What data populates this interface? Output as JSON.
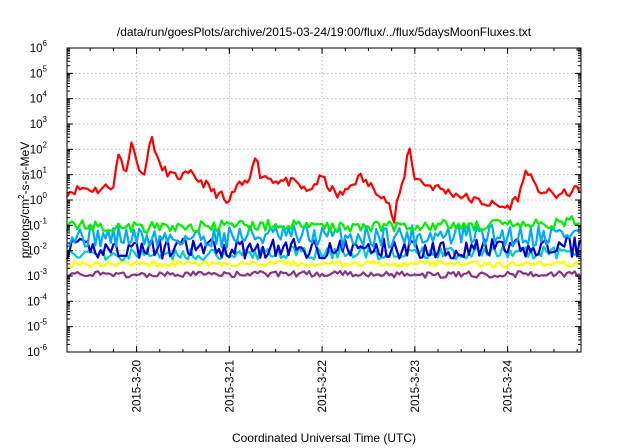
{
  "chart_data": {
    "type": "line",
    "title": "/data/run/goesPlots/archive/2015-03-24/19:00/flux/../flux/5daysMoonFluxes.txt",
    "xlabel": "Coordinated Universal Time (UTC)",
    "ylabel": "protons/cm2-s-sr-MeV",
    "ylabel_parts": [
      "protons/cm",
      "2",
      "-s-sr-MeV"
    ],
    "yscale": "log",
    "ylim": [
      1e-06,
      1000000.0
    ],
    "yticks": [
      {
        "base": "10",
        "exp": "-6"
      },
      {
        "base": "10",
        "exp": "-5"
      },
      {
        "base": "10",
        "exp": "-4"
      },
      {
        "base": "10",
        "exp": "-3"
      },
      {
        "base": "10",
        "exp": "-2"
      },
      {
        "base": "10",
        "exp": "-1"
      },
      {
        "base": "10",
        "exp": "0"
      },
      {
        "base": "10",
        "exp": "1"
      },
      {
        "base": "10",
        "exp": "2"
      },
      {
        "base": "10",
        "exp": "3"
      },
      {
        "base": "10",
        "exp": "4"
      },
      {
        "base": "10",
        "exp": "5"
      },
      {
        "base": "10",
        "exp": "6"
      }
    ],
    "xlim": [
      "2015-03-19T06:00",
      "2015-03-24T19:00"
    ],
    "xticks": [
      {
        "label": "2015-3-20",
        "t": "2015-03-20T00:00"
      },
      {
        "label": "2015-3-21",
        "t": "2015-03-21T00:00"
      },
      {
        "label": "2015-3-22",
        "t": "2015-03-22T00:00"
      },
      {
        "label": "2015-3-23",
        "t": "2015-03-23T00:00"
      },
      {
        "label": "2015-3-24",
        "t": "2015-03-24T00:00"
      }
    ],
    "grid": true,
    "series": [
      {
        "color": "#ff0000",
        "points": [
          [
            "2015-03-19T06:00",
            2
          ],
          [
            "2015-03-19T10:00",
            3
          ],
          [
            "2015-03-19T14:00",
            2.5
          ],
          [
            "2015-03-19T18:00",
            4
          ],
          [
            "2015-03-19T19:30",
            80
          ],
          [
            "2015-03-19T21:00",
            10
          ],
          [
            "2015-03-19T23:00",
            250
          ],
          [
            "2015-03-20T01:00",
            8
          ],
          [
            "2015-03-20T02:00",
            15
          ],
          [
            "2015-03-20T04:00",
            300
          ],
          [
            "2015-03-20T06:00",
            20
          ],
          [
            "2015-03-20T10:00",
            8
          ],
          [
            "2015-03-20T14:00",
            10
          ],
          [
            "2015-03-20T18:00",
            4
          ],
          [
            "2015-03-20T20:00",
            2
          ],
          [
            "2015-03-20T22:00",
            1.5
          ],
          [
            "2015-03-20T23:30",
            0.6
          ],
          [
            "2015-03-21T01:00",
            2
          ],
          [
            "2015-03-21T03:00",
            4
          ],
          [
            "2015-03-21T05:00",
            5
          ],
          [
            "2015-03-21T06:30",
            80
          ],
          [
            "2015-03-21T08:00",
            10
          ],
          [
            "2015-03-21T12:00",
            6
          ],
          [
            "2015-03-21T16:00",
            5
          ],
          [
            "2015-03-21T18:00",
            4
          ],
          [
            "2015-03-21T20:00",
            2
          ],
          [
            "2015-03-21T22:00",
            4
          ],
          [
            "2015-03-22T00:00",
            8
          ],
          [
            "2015-03-22T02:00",
            3
          ],
          [
            "2015-03-22T04:00",
            1.5
          ],
          [
            "2015-03-22T06:00",
            2
          ],
          [
            "2015-03-22T08:00",
            5
          ],
          [
            "2015-03-22T10:00",
            8
          ],
          [
            "2015-03-22T12:00",
            4
          ],
          [
            "2015-03-22T15:00",
            2
          ],
          [
            "2015-03-22T17:00",
            0.8
          ],
          [
            "2015-03-22T18:00",
            0.3
          ],
          [
            "2015-03-22T18:45",
            0.1
          ],
          [
            "2015-03-22T19:30",
            1
          ],
          [
            "2015-03-22T21:00",
            5
          ],
          [
            "2015-03-22T22:30",
            150
          ],
          [
            "2015-03-23T00:00",
            8
          ],
          [
            "2015-03-23T03:00",
            4
          ],
          [
            "2015-03-23T06:00",
            3
          ],
          [
            "2015-03-23T09:00",
            2
          ],
          [
            "2015-03-23T12:00",
            1.5
          ],
          [
            "2015-03-23T15:00",
            1
          ],
          [
            "2015-03-23T18:00",
            0.8
          ],
          [
            "2015-03-23T21:00",
            0.6
          ],
          [
            "2015-03-24T00:00",
            0.5
          ],
          [
            "2015-03-24T03:00",
            1.5
          ],
          [
            "2015-03-24T05:00",
            20
          ],
          [
            "2015-03-24T07:00",
            3
          ],
          [
            "2015-03-24T10:00",
            2
          ],
          [
            "2015-03-24T13:00",
            1.5
          ],
          [
            "2015-03-24T16:00",
            2
          ],
          [
            "2015-03-24T19:00",
            3
          ]
        ],
        "seed": 11,
        "jitter": 0.18
      },
      {
        "color": "#00ee00",
        "base": 0.09,
        "seed": 21,
        "jitter": 0.22,
        "points": [
          [
            "2015-03-19T06:00",
            0.1
          ],
          [
            "2015-03-20T06:00",
            0.08
          ],
          [
            "2015-03-21T06:00",
            0.1
          ],
          [
            "2015-03-22T06:00",
            0.09
          ],
          [
            "2015-03-23T06:00",
            0.1
          ],
          [
            "2015-03-24T06:00",
            0.1
          ],
          [
            "2015-03-24T19:00",
            0.15
          ]
        ]
      },
      {
        "color": "#00aaff",
        "seed": 31,
        "jitter": 0.45,
        "points": [
          [
            "2015-03-19T06:00",
            0.04
          ],
          [
            "2015-03-20T06:00",
            0.03
          ],
          [
            "2015-03-21T06:00",
            0.04
          ],
          [
            "2015-03-22T06:00",
            0.035
          ],
          [
            "2015-03-23T06:00",
            0.04
          ],
          [
            "2015-03-24T06:00",
            0.04
          ],
          [
            "2015-03-24T19:00",
            0.05
          ]
        ]
      },
      {
        "color": "#0000cc",
        "seed": 41,
        "jitter": 0.4,
        "points": [
          [
            "2015-03-19T06:00",
            0.012
          ],
          [
            "2015-03-20T06:00",
            0.012
          ],
          [
            "2015-03-21T06:00",
            0.012
          ],
          [
            "2015-03-22T06:00",
            0.012
          ],
          [
            "2015-03-23T06:00",
            0.012
          ],
          [
            "2015-03-24T06:00",
            0.012
          ],
          [
            "2015-03-24T19:00",
            0.015
          ]
        ]
      },
      {
        "color": "#00cccc",
        "seed": 51,
        "jitter": 0.25,
        "points": [
          [
            "2015-03-19T06:00",
            0.008
          ],
          [
            "2015-03-20T06:00",
            0.007
          ],
          [
            "2015-03-21T06:00",
            0.008
          ],
          [
            "2015-03-22T06:00",
            0.008
          ],
          [
            "2015-03-23T06:00",
            0.008
          ],
          [
            "2015-03-24T06:00",
            0.008
          ],
          [
            "2015-03-24T19:00",
            0.009
          ]
        ]
      },
      {
        "color": "#ffff00",
        "seed": 61,
        "jitter": 0.12,
        "points": [
          [
            "2015-03-19T06:00",
            0.003
          ],
          [
            "2015-03-20T06:00",
            0.003
          ],
          [
            "2015-03-21T06:00",
            0.003
          ],
          [
            "2015-03-22T06:00",
            0.003
          ],
          [
            "2015-03-23T06:00",
            0.003
          ],
          [
            "2015-03-24T06:00",
            0.003
          ],
          [
            "2015-03-24T19:00",
            0.003
          ]
        ]
      },
      {
        "color": "#883388",
        "seed": 71,
        "jitter": 0.12,
        "points": [
          [
            "2015-03-19T06:00",
            0.0012
          ],
          [
            "2015-03-20T06:00",
            0.0011
          ],
          [
            "2015-03-21T06:00",
            0.0012
          ],
          [
            "2015-03-22T06:00",
            0.0012
          ],
          [
            "2015-03-23T06:00",
            0.0011
          ],
          [
            "2015-03-24T06:00",
            0.0012
          ],
          [
            "2015-03-24T19:00",
            0.0012
          ]
        ]
      }
    ]
  }
}
